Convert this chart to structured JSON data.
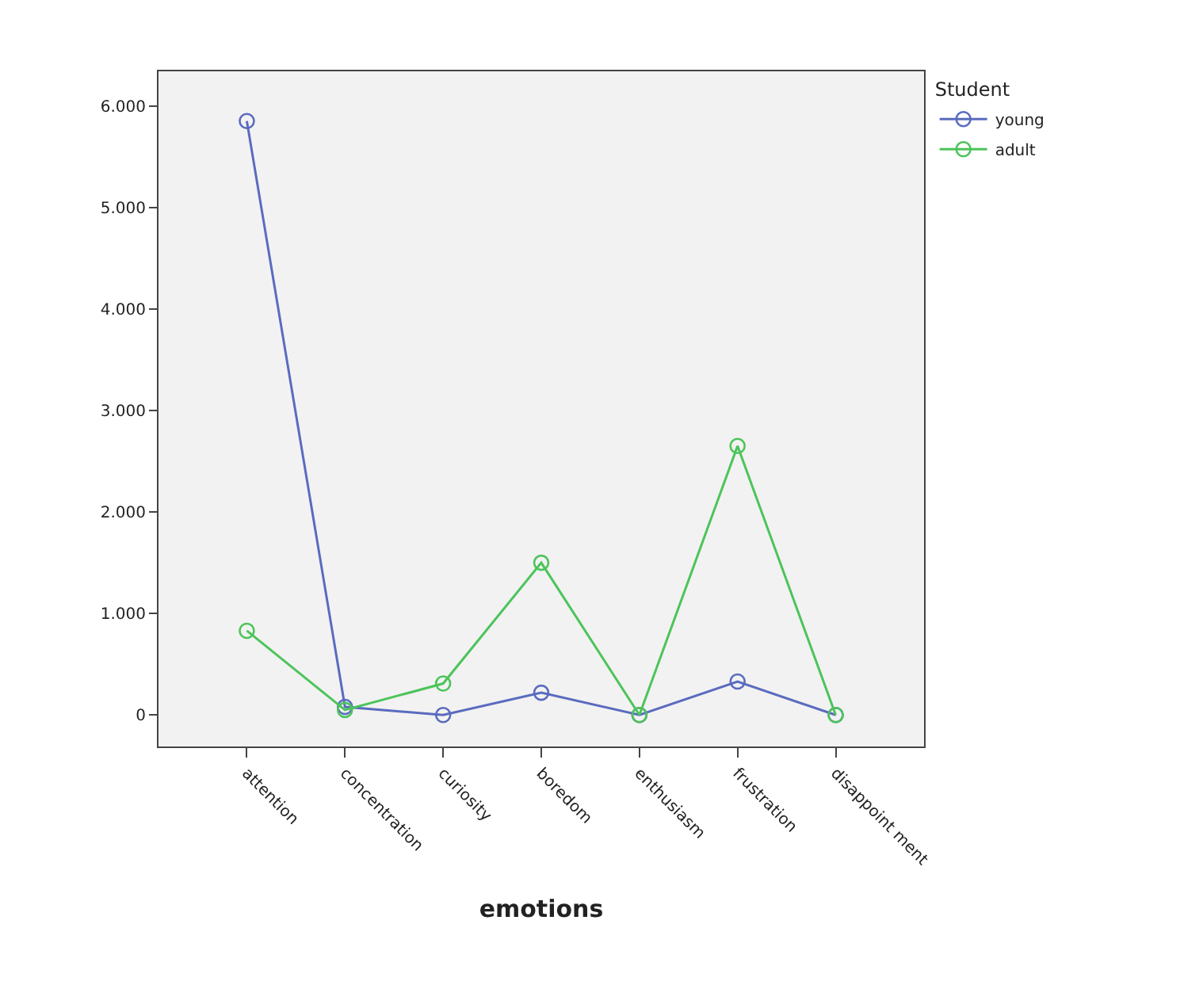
{
  "chart_data": {
    "type": "line",
    "xlabel": "emotions",
    "legend_title": "Student",
    "categories": [
      "attention",
      "concentration",
      "curiosity",
      "boredom",
      "enthusiasm",
      "frustration",
      "disappoint ment"
    ],
    "series": [
      {
        "name": "young",
        "color": "#5a6bbf",
        "values": [
          5850,
          80,
          0,
          220,
          0,
          330,
          0
        ]
      },
      {
        "name": "adult",
        "color": "#4cc45a",
        "values": [
          830,
          50,
          310,
          1500,
          0,
          2650,
          0
        ]
      }
    ],
    "ylim": [
      -310,
      6340
    ],
    "yticks": [
      0,
      {
        "value": 1000,
        "label": "1.000"
      },
      {
        "value": 2000,
        "label": "2.000"
      },
      {
        "value": 3000,
        "label": "3.000"
      },
      {
        "value": 4000,
        "label": "4.000"
      },
      {
        "value": 5000,
        "label": "5.000"
      },
      {
        "value": 6000,
        "label": "6.000"
      }
    ],
    "grid": false,
    "legend": "top right",
    "marker": "circle",
    "line_style": "solid"
  }
}
